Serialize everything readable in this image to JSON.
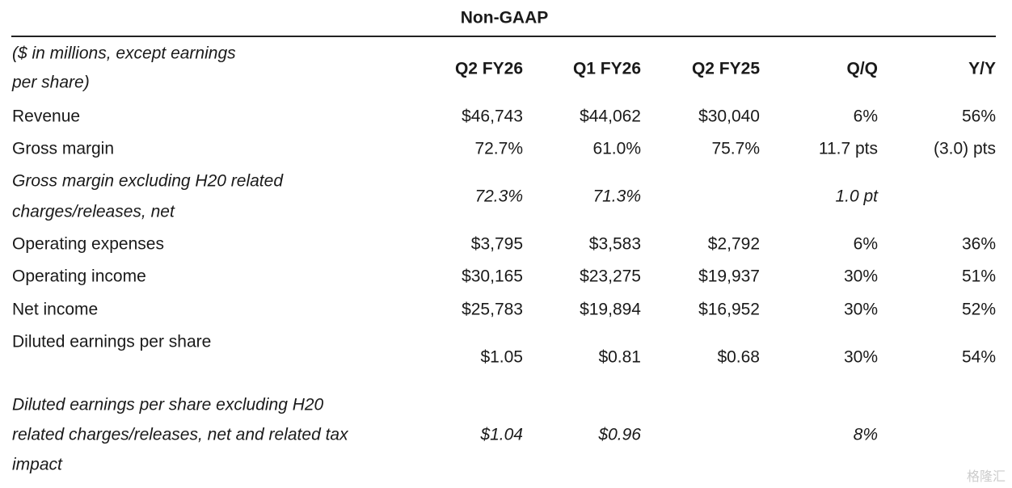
{
  "title": "Non-GAAP",
  "header": {
    "label": [
      "($ in millions, except earnings",
      "per share)"
    ],
    "columns": [
      "Q2 FY26",
      "Q1 FY26",
      "Q2 FY25",
      "Q/Q",
      "Y/Y"
    ]
  },
  "rows": [
    {
      "label": [
        "Revenue"
      ],
      "italic": false,
      "cells": [
        "$46,743",
        "$44,062",
        "$30,040",
        "6%",
        "56%"
      ]
    },
    {
      "label": [
        "Gross margin"
      ],
      "italic": false,
      "cells": [
        "72.7%",
        "61.0%",
        "75.7%",
        "11.7 pts",
        "(3.0) pts"
      ]
    },
    {
      "label": [
        "Gross margin excluding H20 related",
        "charges/releases, net"
      ],
      "italic": true,
      "cells": [
        "72.3%",
        "71.3%",
        null,
        "1.0 pt",
        null
      ]
    },
    {
      "label": [
        "Operating expenses"
      ],
      "italic": false,
      "cells": [
        "$3,795",
        "$3,583",
        "$2,792",
        "6%",
        "36%"
      ]
    },
    {
      "label": [
        "Operating income"
      ],
      "italic": false,
      "cells": [
        "$30,165",
        "$23,275",
        "$19,937",
        "30%",
        "51%"
      ]
    },
    {
      "label": [
        "Net income"
      ],
      "italic": false,
      "cells": [
        "$25,783",
        "$19,894",
        "$16,952",
        "30%",
        "52%"
      ]
    },
    {
      "label": [
        "Diluted earnings per share"
      ],
      "italic": false,
      "cells": [
        "$1.05",
        "$0.81",
        "$0.68",
        "30%",
        "54%"
      ]
    },
    {
      "label": [
        "Diluted earnings per share excluding H20",
        "related charges/releases, net and related tax",
        "impact"
      ],
      "italic": true,
      "cells": [
        "$1.04",
        "$0.96",
        null,
        "8%",
        null
      ]
    }
  ],
  "watermark": "格隆汇"
}
